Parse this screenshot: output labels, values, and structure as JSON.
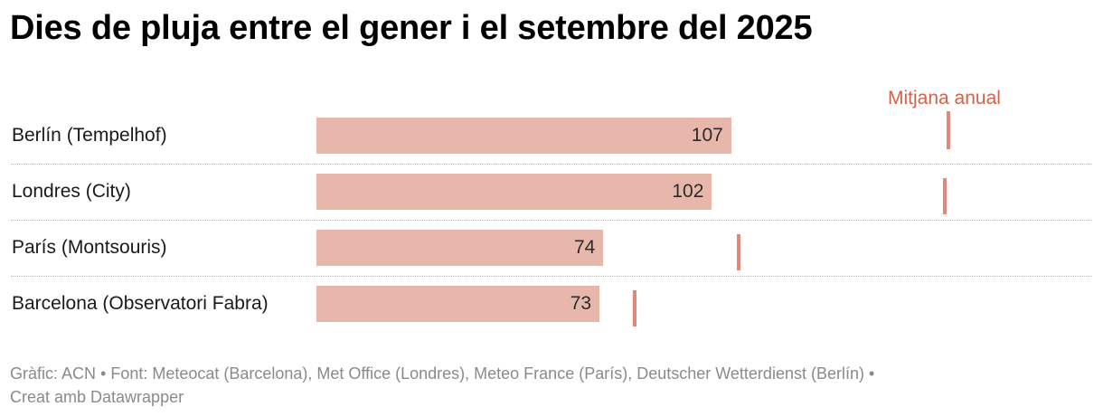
{
  "chart_data": {
    "type": "bar",
    "title": "Dies de pluja entre el gener i el setembre del 2025",
    "categories": [
      "Berlín (Tempelhof)",
      "Londres (City)",
      "París (Montsouris)",
      "Barcelona (Observatori Fabra)"
    ],
    "series": [
      {
        "values": [
          107,
          102,
          74,
          73
        ]
      },
      {
        "name": "Mitjana anual",
        "values": [
          163,
          162,
          109,
          82
        ]
      }
    ],
    "value_labels": [
      "107",
      "102",
      "74",
      "73"
    ],
    "xlim": [
      0,
      163
    ],
    "grid": false,
    "colors": {
      "bar": "#e8b7ac",
      "average_marker": "#e0897a",
      "average_label": "#d4614a"
    }
  },
  "footer": {
    "line1": "Gràfic: ACN • Font: Meteocat (Barcelona), Met Office (Londres), Meteo France (París), Deutscher Wetterdienst (Berlín) •",
    "line2": "Creat amb Datawrapper"
  }
}
